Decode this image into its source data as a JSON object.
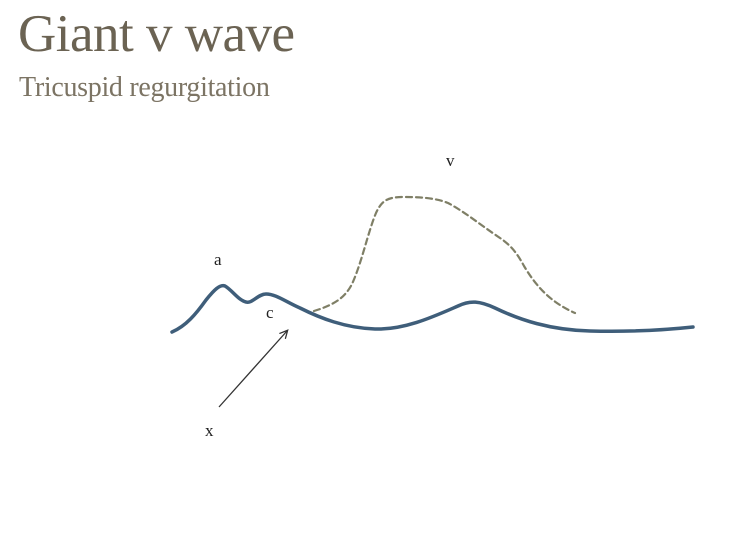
{
  "slide": {
    "title": "Giant v wave",
    "subtitle": "Tricuspid regurgitation"
  },
  "diagram": {
    "labels": {
      "a": "a",
      "c": "c",
      "v": "v",
      "x": "x"
    },
    "colors": {
      "waveform": "#3f5e7a",
      "giant_v_wave": "#7f7f66",
      "arrow": "#333333",
      "title": "#6b6353",
      "subtitle": "#7c7464"
    }
  }
}
